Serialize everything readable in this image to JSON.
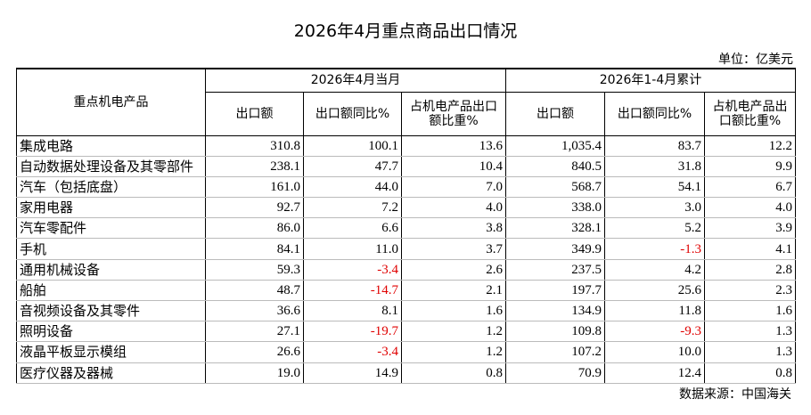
{
  "title": "2026年4月重点商品出口情况",
  "unit": "单位：亿美元",
  "table": {
    "row_header": "重点机电产品",
    "groups": [
      "2026年4月当月",
      "2026年1-4月累计"
    ],
    "columns": [
      "出口额",
      "出口额同比%",
      "占机电产品出口额比重%",
      "出口额",
      "出口额同比%",
      "占机电产品出口额比重%"
    ],
    "rows": [
      [
        "集成电路",
        "310.8",
        "100.1",
        "13.6",
        "1,035.4",
        "83.7",
        "12.2"
      ],
      [
        "自动数据处理设备及其零部件",
        "238.1",
        "47.7",
        "10.4",
        "840.5",
        "31.8",
        "9.9"
      ],
      [
        "汽车（包括底盘）",
        "161.0",
        "44.0",
        "7.0",
        "568.7",
        "54.1",
        "6.7"
      ],
      [
        "家用电器",
        "92.7",
        "7.2",
        "4.0",
        "338.0",
        "3.0",
        "4.0"
      ],
      [
        "汽车零配件",
        "86.0",
        "6.6",
        "3.8",
        "328.1",
        "5.2",
        "3.9"
      ],
      [
        "手机",
        "84.1",
        "11.0",
        "3.7",
        "349.9",
        "-1.3",
        "4.1"
      ],
      [
        "通用机械设备",
        "59.3",
        "-3.4",
        "2.6",
        "237.5",
        "4.2",
        "2.8"
      ],
      [
        "船舶",
        "48.7",
        "-14.7",
        "2.1",
        "197.7",
        "25.6",
        "2.3"
      ],
      [
        "音视频设备及其零件",
        "36.6",
        "8.1",
        "1.6",
        "134.9",
        "11.8",
        "1.6"
      ],
      [
        "照明设备",
        "27.1",
        "-19.7",
        "1.2",
        "109.8",
        "-9.3",
        "1.3"
      ],
      [
        "液晶平板显示模组",
        "26.6",
        "-3.4",
        "1.2",
        "107.2",
        "10.0",
        "1.3"
      ],
      [
        "医疗仪器及器械",
        "19.0",
        "14.9",
        "0.8",
        "70.9",
        "12.4",
        "0.8"
      ]
    ]
  },
  "source": "数据来源：中国海关"
}
